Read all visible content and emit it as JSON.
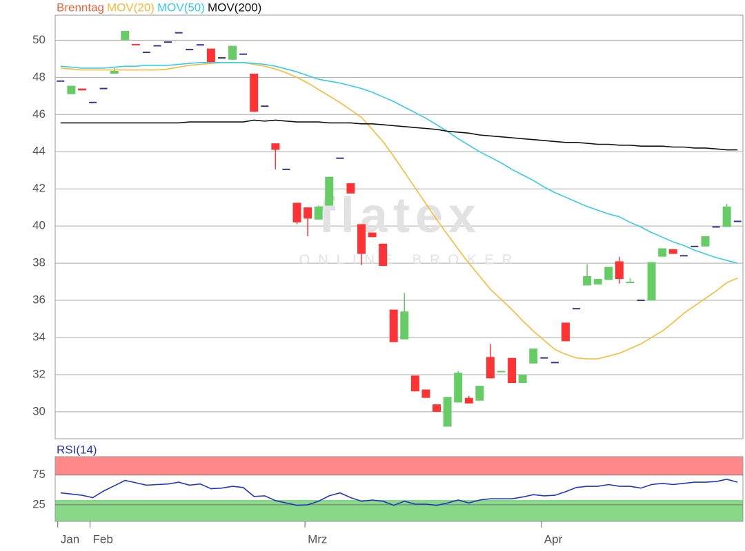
{
  "chart_data": [
    {
      "type": "candlestick",
      "series_name": "Brenntag",
      "series_color": "#f0643c",
      "up_color": "#66cc66",
      "down_color": "#ff3333",
      "flat_color": "#333399",
      "watermark": "flatex",
      "watermark_sub": "ONLINE BROKER",
      "categories": [
        "Jan",
        null,
        null,
        "Feb",
        null,
        null,
        null,
        null,
        null,
        null,
        null,
        null,
        null,
        null,
        null,
        null,
        null,
        null,
        null,
        null,
        null,
        null,
        null,
        "Mrz",
        null,
        null,
        null,
        null,
        null,
        null,
        null,
        null,
        null,
        null,
        null,
        null,
        null,
        null,
        null,
        null,
        null,
        null,
        null,
        null,
        null,
        "Apr",
        null,
        null,
        null,
        null,
        null,
        null,
        null,
        null,
        null,
        null,
        null,
        null,
        null,
        null,
        null,
        null,
        null,
        null
      ],
      "open": [
        47.8,
        47.1,
        47.4,
        46.65,
        47.4,
        48.2,
        50.0,
        49.8,
        49.35,
        49.7,
        49.9,
        50.4,
        49.5,
        49.75,
        49.55,
        49.05,
        48.95,
        49.25,
        48.2,
        46.45,
        44.45,
        43.05,
        41.25,
        41.0,
        40.35,
        41.1,
        43.65,
        42.3,
        40.1,
        39.65,
        39.05,
        35.5,
        33.9,
        31.95,
        31.2,
        30.4,
        29.2,
        30.5,
        30.75,
        30.6,
        32.95,
        32.15,
        32.9,
        31.55,
        32.6,
        32.9,
        32.65,
        34.8,
        35.55,
        36.8,
        36.85,
        37.1,
        38.1,
        36.95,
        36.0,
        36.0,
        38.35,
        38.75,
        38.4,
        38.9,
        38.9,
        39.95,
        39.95,
        40.25
      ],
      "high": [
        47.8,
        47.55,
        47.4,
        46.65,
        47.4,
        48.5,
        50.5,
        49.8,
        49.35,
        49.7,
        49.9,
        50.4,
        49.5,
        49.75,
        49.55,
        49.05,
        49.7,
        49.25,
        48.2,
        46.45,
        44.45,
        43.05,
        41.25,
        41.0,
        41.1,
        42.65,
        43.65,
        42.3,
        40.1,
        39.65,
        39.05,
        35.5,
        36.4,
        31.95,
        31.2,
        30.4,
        30.8,
        32.2,
        30.85,
        31.4,
        33.65,
        32.2,
        32.9,
        32.0,
        33.4,
        32.9,
        32.65,
        34.8,
        35.55,
        37.95,
        37.15,
        37.8,
        38.35,
        37.2,
        36.0,
        38.05,
        38.8,
        38.75,
        38.4,
        38.9,
        39.45,
        39.95,
        41.2,
        40.25
      ],
      "low": [
        47.8,
        47.1,
        47.3,
        46.65,
        47.4,
        48.2,
        50.0,
        49.75,
        49.35,
        49.7,
        49.9,
        50.4,
        49.5,
        49.75,
        48.8,
        49.05,
        48.95,
        49.25,
        46.15,
        46.45,
        43.05,
        43.05,
        40.1,
        39.45,
        40.35,
        41.1,
        43.65,
        41.75,
        37.9,
        39.4,
        37.85,
        33.75,
        33.9,
        31.1,
        30.75,
        30.0,
        29.2,
        30.5,
        30.45,
        30.6,
        31.8,
        32.15,
        31.55,
        31.55,
        32.6,
        32.9,
        32.65,
        33.8,
        35.55,
        36.8,
        36.85,
        37.1,
        36.9,
        36.95,
        36.0,
        36.0,
        38.35,
        38.5,
        38.4,
        38.9,
        38.9,
        39.95,
        39.95,
        40.25
      ],
      "close": [
        47.8,
        47.55,
        47.3,
        46.65,
        47.4,
        48.35,
        50.5,
        49.75,
        49.35,
        49.7,
        49.9,
        50.4,
        49.5,
        49.75,
        48.8,
        49.05,
        49.7,
        49.25,
        46.15,
        46.45,
        44.1,
        43.05,
        40.2,
        40.4,
        41.05,
        42.65,
        43.65,
        41.75,
        38.5,
        39.4,
        37.85,
        33.75,
        35.4,
        31.1,
        30.75,
        30.0,
        30.8,
        32.1,
        30.45,
        31.4,
        31.8,
        32.2,
        31.55,
        32.0,
        33.4,
        32.9,
        32.65,
        33.8,
        35.55,
        37.3,
        37.15,
        37.8,
        37.15,
        37.0,
        36.0,
        38.05,
        38.8,
        38.5,
        38.4,
        38.9,
        39.45,
        39.95,
        41.05,
        40.25
      ],
      "overlays": [
        {
          "name": "MOV(20)",
          "color": "#ffb833",
          "values": [
            48.5,
            48.45,
            48.4,
            48.4,
            48.4,
            48.4,
            48.4,
            48.4,
            48.4,
            48.4,
            48.45,
            48.55,
            48.65,
            48.7,
            48.75,
            48.8,
            48.8,
            48.8,
            48.7,
            48.6,
            48.45,
            48.25,
            48.0,
            47.7,
            47.35,
            47.0,
            46.65,
            46.25,
            45.85,
            45.2,
            44.55,
            43.75,
            42.9,
            42.05,
            41.2,
            40.35,
            39.55,
            38.75,
            38.0,
            37.3,
            36.6,
            36.05,
            35.5,
            34.9,
            34.35,
            33.85,
            33.35,
            33.1,
            32.9,
            32.85,
            32.85,
            33.0,
            33.15,
            33.4,
            33.65,
            34.0,
            34.35,
            34.8,
            35.3,
            35.7,
            36.1,
            36.5,
            36.95,
            37.2
          ]
        },
        {
          "name": "MOV(50)",
          "color": "#33ccee",
          "values": [
            48.6,
            48.55,
            48.5,
            48.5,
            48.5,
            48.55,
            48.6,
            48.6,
            48.65,
            48.65,
            48.65,
            48.7,
            48.75,
            48.8,
            48.8,
            48.8,
            48.8,
            48.8,
            48.75,
            48.7,
            48.6,
            48.45,
            48.3,
            48.1,
            47.9,
            47.8,
            47.7,
            47.55,
            47.4,
            47.2,
            46.95,
            46.7,
            46.4,
            46.1,
            45.8,
            45.45,
            45.1,
            44.7,
            44.35,
            44.0,
            43.7,
            43.4,
            43.05,
            42.75,
            42.45,
            42.1,
            41.8,
            41.55,
            41.3,
            41.05,
            40.85,
            40.65,
            40.5,
            40.2,
            39.95,
            39.65,
            39.4,
            39.15,
            38.95,
            38.7,
            38.5,
            38.3,
            38.15,
            38.0
          ]
        },
        {
          "name": "MOV(200)",
          "color": "#111111",
          "values": [
            45.55,
            45.55,
            45.55,
            45.55,
            45.55,
            45.55,
            45.55,
            45.55,
            45.55,
            45.55,
            45.55,
            45.55,
            45.6,
            45.6,
            45.6,
            45.6,
            45.6,
            45.6,
            45.7,
            45.65,
            45.7,
            45.65,
            45.6,
            45.6,
            45.6,
            45.55,
            45.55,
            45.55,
            45.5,
            45.5,
            45.45,
            45.4,
            45.35,
            45.3,
            45.25,
            45.2,
            45.1,
            45.05,
            45.0,
            44.9,
            44.85,
            44.8,
            44.75,
            44.7,
            44.65,
            44.6,
            44.55,
            44.5,
            44.5,
            44.45,
            44.4,
            44.4,
            44.35,
            44.35,
            44.3,
            44.3,
            44.3,
            44.25,
            44.25,
            44.2,
            44.2,
            44.15,
            44.1,
            44.1
          ]
        }
      ],
      "ylim": [
        28.55,
        51.35
      ],
      "yticks": [
        30,
        32,
        34,
        36,
        38,
        40,
        42,
        44,
        46,
        48,
        50
      ],
      "grid": true
    },
    {
      "type": "line",
      "series": [
        {
          "name": "RSI(14)",
          "color": "#2233cc",
          "values": [
            45,
            43,
            41,
            37,
            48,
            57,
            66,
            62,
            58,
            59,
            60,
            63,
            58,
            60,
            52,
            53,
            56,
            54,
            39,
            40,
            32,
            28,
            24,
            25,
            31,
            40,
            45,
            37,
            31,
            33,
            31,
            24,
            31,
            26,
            26,
            24,
            28,
            33,
            28,
            33,
            35,
            35,
            35,
            38,
            42,
            40,
            41,
            47,
            54,
            56,
            56,
            59,
            56,
            56,
            53,
            59,
            61,
            59,
            61,
            63,
            63,
            64,
            68,
            63
          ]
        }
      ],
      "upper_band": [
        75,
        106
      ],
      "upper_color": "#ff8888",
      "lower_band": [
        -3,
        33
      ],
      "lower_color": "#88d888",
      "ylim": [
        -3,
        106
      ],
      "yticks": [
        25,
        75
      ],
      "grid": true
    }
  ]
}
